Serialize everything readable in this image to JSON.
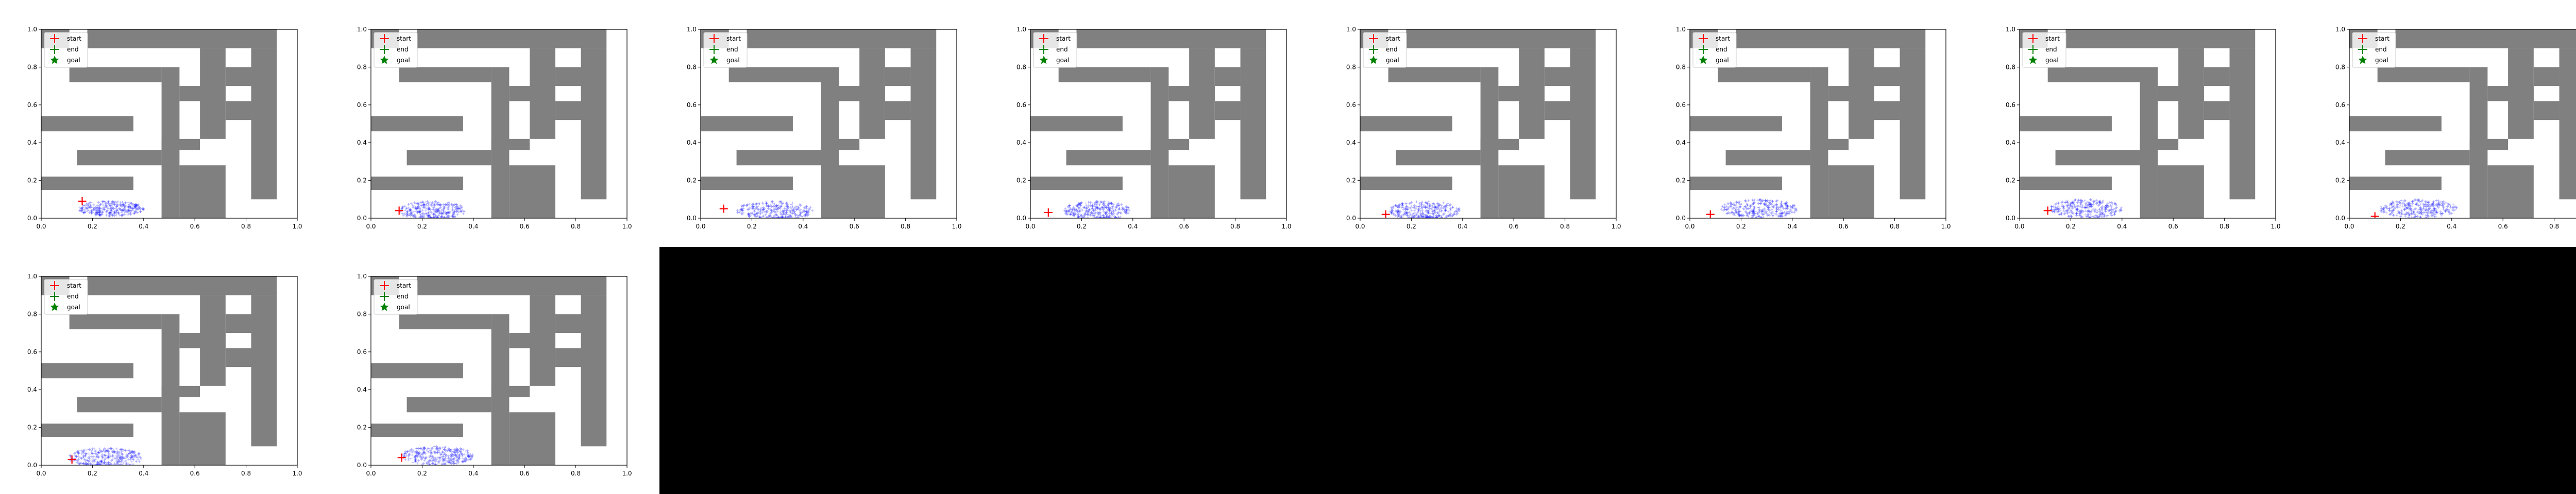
{
  "figure": {
    "background": "#ffffff",
    "empty_region_color": "#000000",
    "panel_count": 10,
    "columns": 8
  },
  "chart_data": {
    "type": "scatter",
    "subplot_count": 10,
    "shared": {
      "xlim": [
        0.0,
        1.0
      ],
      "ylim": [
        0.0,
        1.0
      ],
      "xticks": [
        "0.0",
        "0.2",
        "0.4",
        "0.6",
        "0.8",
        "1.0"
      ],
      "yticks": [
        "0.0",
        "0.2",
        "0.4",
        "0.6",
        "0.8",
        "1.0"
      ],
      "grid": false,
      "legend_position": "top-left",
      "legend": [
        {
          "label": "start",
          "marker": "plus",
          "color": "#ff0000"
        },
        {
          "label": "end",
          "marker": "plus",
          "color": "#008000"
        },
        {
          "label": "goal",
          "marker": "star",
          "color": "#008000"
        }
      ],
      "maze_color": "#808080",
      "maze_walls": [
        [
          0.18,
          0.9,
          0.92,
          1.0
        ],
        [
          0.0,
          0.9,
          0.11,
          1.0
        ],
        [
          0.82,
          0.1,
          0.92,
          0.9
        ],
        [
          0.62,
          0.42,
          0.72,
          0.9
        ],
        [
          0.72,
          0.52,
          0.82,
          0.62
        ],
        [
          0.72,
          0.7,
          0.82,
          0.8
        ],
        [
          0.47,
          0.0,
          0.54,
          0.8
        ],
        [
          0.11,
          0.72,
          0.47,
          0.8
        ],
        [
          0.0,
          0.46,
          0.36,
          0.54
        ],
        [
          0.54,
          0.62,
          0.72,
          0.7
        ],
        [
          0.54,
          0.0,
          0.72,
          0.28
        ],
        [
          0.0,
          0.15,
          0.36,
          0.22
        ],
        [
          0.14,
          0.28,
          0.47,
          0.36
        ],
        [
          0.47,
          0.36,
          0.62,
          0.42
        ]
      ],
      "scatter_color": "#0000ff"
    },
    "panels": [
      {
        "start": [
          0.16,
          0.09
        ],
        "cloud": {
          "cx": 0.27,
          "cy": 0.05,
          "rx": 0.13,
          "ry": 0.04,
          "n": 320
        }
      },
      {
        "start": [
          0.11,
          0.04
        ],
        "cloud": {
          "cx": 0.24,
          "cy": 0.04,
          "rx": 0.13,
          "ry": 0.05,
          "n": 320
        }
      },
      {
        "start": [
          0.09,
          0.05
        ],
        "cloud": {
          "cx": 0.29,
          "cy": 0.04,
          "rx": 0.15,
          "ry": 0.05,
          "n": 320
        }
      },
      {
        "start": [
          0.07,
          0.03
        ],
        "cloud": {
          "cx": 0.26,
          "cy": 0.04,
          "rx": 0.13,
          "ry": 0.05,
          "n": 320
        }
      },
      {
        "start": [
          0.1,
          0.02
        ],
        "cloud": {
          "cx": 0.25,
          "cy": 0.04,
          "rx": 0.14,
          "ry": 0.05,
          "n": 320
        }
      },
      {
        "start": [
          0.08,
          0.02
        ],
        "cloud": {
          "cx": 0.27,
          "cy": 0.05,
          "rx": 0.15,
          "ry": 0.05,
          "n": 320
        }
      },
      {
        "start": [
          0.11,
          0.04
        ],
        "cloud": {
          "cx": 0.26,
          "cy": 0.05,
          "rx": 0.14,
          "ry": 0.05,
          "n": 320
        }
      },
      {
        "start": [
          0.1,
          0.01
        ],
        "cloud": {
          "cx": 0.27,
          "cy": 0.05,
          "rx": 0.15,
          "ry": 0.05,
          "n": 320
        }
      },
      {
        "start": [
          0.12,
          0.03
        ],
        "cloud": {
          "cx": 0.25,
          "cy": 0.04,
          "rx": 0.15,
          "ry": 0.05,
          "n": 320
        }
      },
      {
        "start": [
          0.12,
          0.04
        ],
        "cloud": {
          "cx": 0.26,
          "cy": 0.05,
          "rx": 0.14,
          "ry": 0.05,
          "n": 320
        }
      }
    ]
  }
}
